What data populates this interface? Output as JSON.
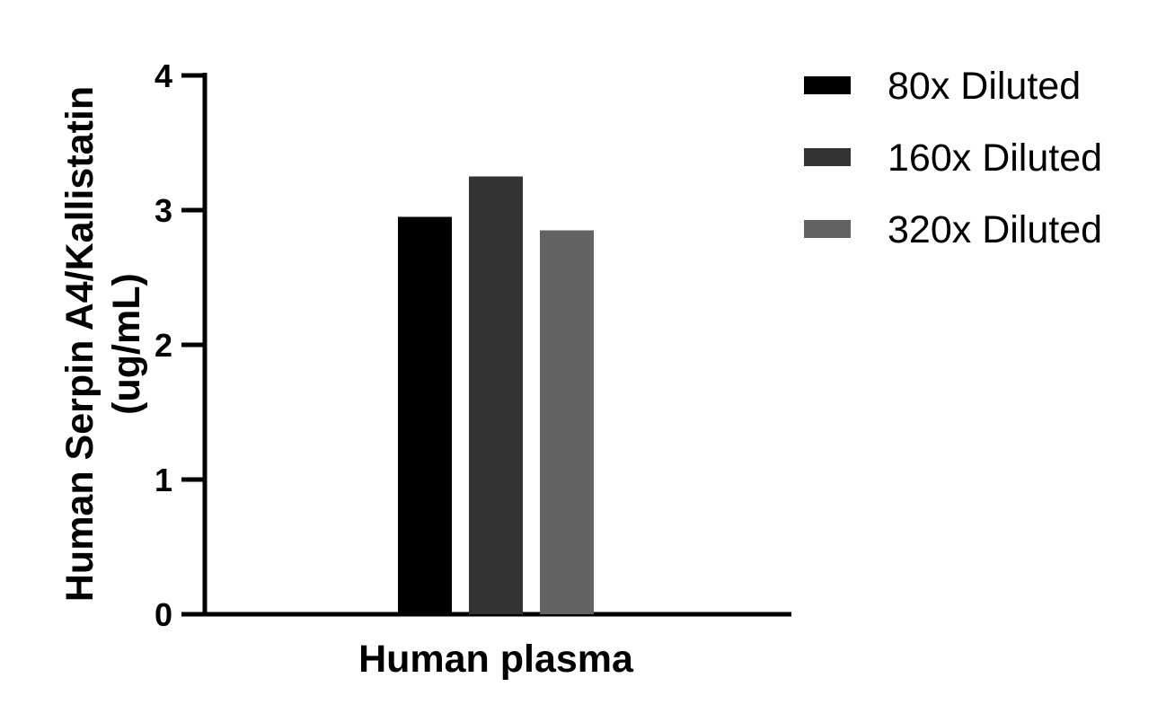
{
  "chart_data": {
    "type": "bar",
    "categories": [
      "Human plasma"
    ],
    "series": [
      {
        "name": "80x Diluted",
        "values": [
          2.95
        ],
        "color": "#000000"
      },
      {
        "name": "160x Diluted",
        "values": [
          3.25
        ],
        "color": "#333333"
      },
      {
        "name": "320x Diluted",
        "values": [
          2.85
        ],
        "color": "#636363"
      }
    ],
    "xlabel": "Human plasma",
    "ylabel_line1": "Human Serpin A4/Kallistatin",
    "ylabel_line2": "(ug/mL)",
    "ylim": [
      0,
      4
    ],
    "yticks": [
      "0",
      "1",
      "2",
      "3",
      "4"
    ],
    "grid": false,
    "legend_position": "right"
  }
}
